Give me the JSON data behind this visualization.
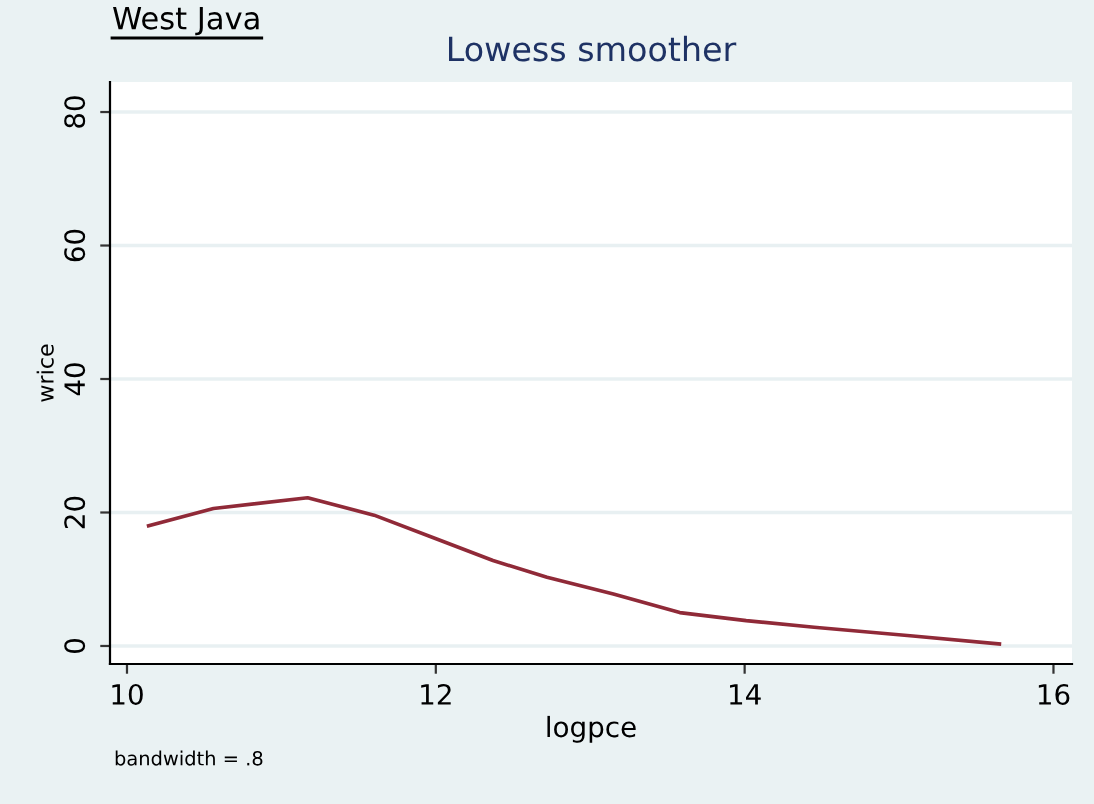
{
  "chart_data": {
    "type": "line",
    "title": "Lowess smoother",
    "xlabel": "logpce",
    "ylabel": "wrice",
    "annotations": [
      "West Java",
      "bandwidth = .8"
    ],
    "x": [
      10.14,
      10.56,
      11.17,
      11.6,
      12.01,
      12.37,
      12.72,
      13.15,
      13.58,
      14.01,
      14.45,
      15.09,
      15.65
    ],
    "series": [
      {
        "color": "#902a38",
        "values": [
          18.0,
          20.6,
          22.2,
          19.6,
          16.0,
          12.8,
          10.3,
          7.8,
          5.0,
          3.8,
          2.8,
          1.5,
          0.3
        ]
      }
    ],
    "xlim": [
      9.89,
      16.12
    ],
    "xticks": [
      10,
      12,
      14,
      16
    ],
    "ylim": [
      -2.7,
      84.5
    ],
    "yticks": [
      0,
      20,
      40,
      60,
      80
    ],
    "grid": "y",
    "legend": false,
    "marker": "none",
    "line_style": "solid"
  }
}
